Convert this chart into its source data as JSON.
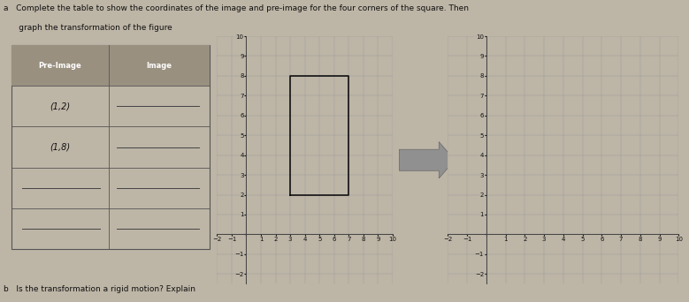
{
  "title_line1": "a   Complete the table to show the coordinates of the image and pre-image for the four corners of the square. Then",
  "title_line2": "      graph the transformation of the figure",
  "question_b": "b   Is the transformation a rigid motion? Explain",
  "table_headers": [
    "Pre-Image",
    "Image"
  ],
  "table_rows": [
    [
      "(1,2)",
      ""
    ],
    [
      "(1,8)",
      ""
    ],
    [
      "",
      ""
    ],
    [
      "",
      ""
    ]
  ],
  "bg_color": "#bdb5a6",
  "grid_color": "#999999",
  "square_x": [
    3,
    7,
    7,
    3,
    3
  ],
  "square_y": [
    2,
    2,
    8,
    8,
    2
  ],
  "square_color": "#111111",
  "axis_min": -2,
  "axis_max": 10,
  "arrow_color": "#808080",
  "text_color": "#111111",
  "header_bg": "#9a9080",
  "font_size_title": 6.5,
  "font_size_table": 7,
  "font_size_axis": 5
}
